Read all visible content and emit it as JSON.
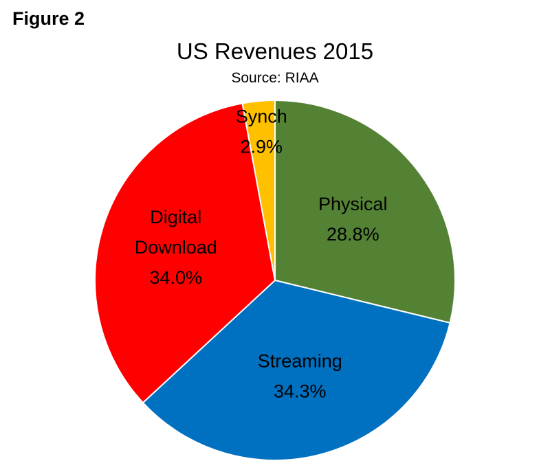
{
  "figure_label": "Figure 2",
  "chart_data": {
    "type": "pie",
    "title": "US Revenues 2015",
    "subtitle": "Source: RIAA",
    "slices": [
      {
        "name": "Physical",
        "value": 28.8,
        "label": "28.8%",
        "color": "#548235"
      },
      {
        "name": "Streaming",
        "value": 34.3,
        "label": "34.3%",
        "color": "#0070C0"
      },
      {
        "name": "Digital Download",
        "label_lines": [
          "Digital",
          "Download"
        ],
        "value": 34.0,
        "label": "34.0%",
        "color": "#FF0000"
      },
      {
        "name": "Synch",
        "value": 2.9,
        "label": "2.9%",
        "color": "#FFC000"
      }
    ],
    "start_angle": "12 o'clock",
    "direction": "clockwise",
    "legend": "none",
    "slice_border_color": "#ffffff"
  }
}
